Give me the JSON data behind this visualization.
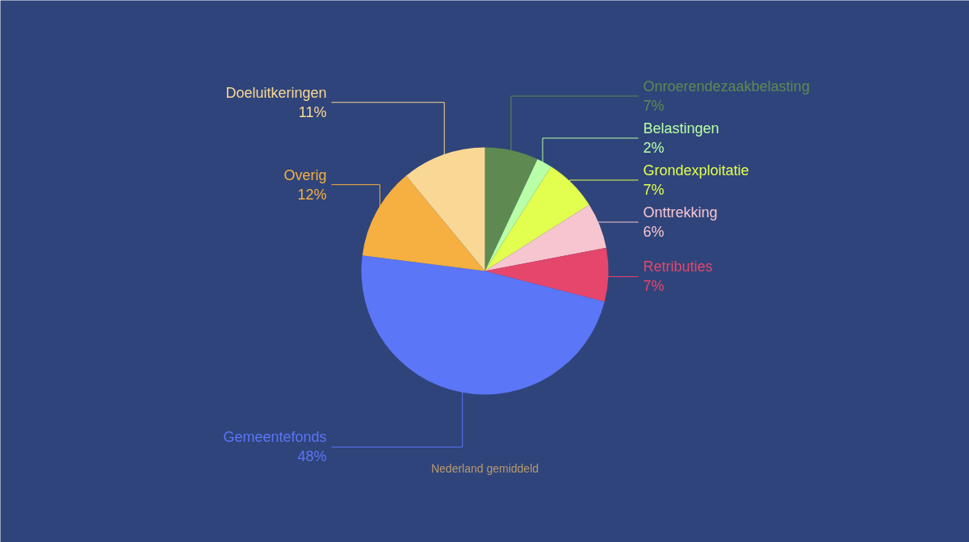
{
  "chart_data": {
    "type": "pie",
    "categories": [
      "Onroerendezaakbelasting",
      "Belastingen",
      "Grondexploitatie",
      "Onttrekking",
      "Retributies",
      "Gemeentefonds",
      "Overig",
      "Doeluitkeringen"
    ],
    "values": [
      7,
      2,
      7,
      6,
      7,
      48,
      12,
      11
    ],
    "value_labels": [
      "7%",
      "2%",
      "7%",
      "6%",
      "7%",
      "48%",
      "12%",
      "11%"
    ],
    "colors": [
      "#5e8a52",
      "#b8ffa8",
      "#e2ff4f",
      "#f7c5d0",
      "#e5466b",
      "#5b76f7",
      "#f5b041",
      "#f9d895"
    ],
    "annotations": [
      "Nederland gemiddeld"
    ]
  }
}
